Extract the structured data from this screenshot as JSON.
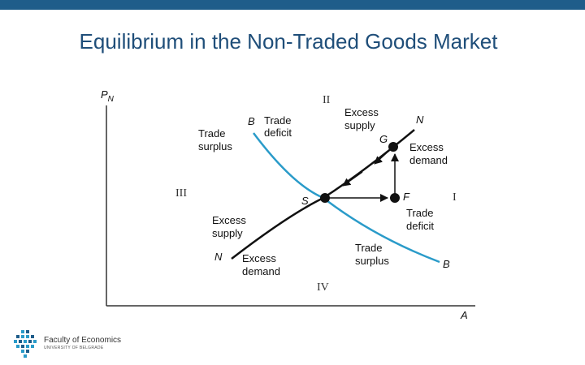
{
  "title": "Equilibrium in the Non-Traded Goods Market",
  "diagram": {
    "y_axis_label": {
      "main": "P",
      "sub": "N"
    },
    "x_axis_label": "A",
    "quadrants": {
      "q1": "I",
      "q2": "II",
      "q3": "III",
      "q4": "IV"
    },
    "curve_b_top": "B",
    "curve_b_bottom": "B",
    "curve_n_top": "N",
    "curve_n_bottom": "N",
    "point_s": "S",
    "point_g": "G",
    "point_f": "F",
    "trade_deficit_top": [
      "Trade",
      "deficit"
    ],
    "trade_surplus_left": [
      "Trade",
      "surplus"
    ],
    "excess_supply_top": [
      "Excess",
      "supply"
    ],
    "excess_demand_g": [
      "Excess",
      "demand"
    ],
    "trade_deficit_f": [
      "Trade",
      "deficit"
    ],
    "excess_supply_left": [
      "Excess",
      "supply"
    ],
    "excess_demand_bottom": [
      "Excess",
      "demand"
    ],
    "trade_surplus_bottom": [
      "Trade",
      "surplus"
    ],
    "colors": {
      "bb_curve": "#2a9bc9",
      "nn_curve": "#111111",
      "axes": "#333333"
    }
  },
  "footer": {
    "logo_name": "Faculty of Economics",
    "logo_sub": "UNIVERSITY OF BELGRADE"
  }
}
